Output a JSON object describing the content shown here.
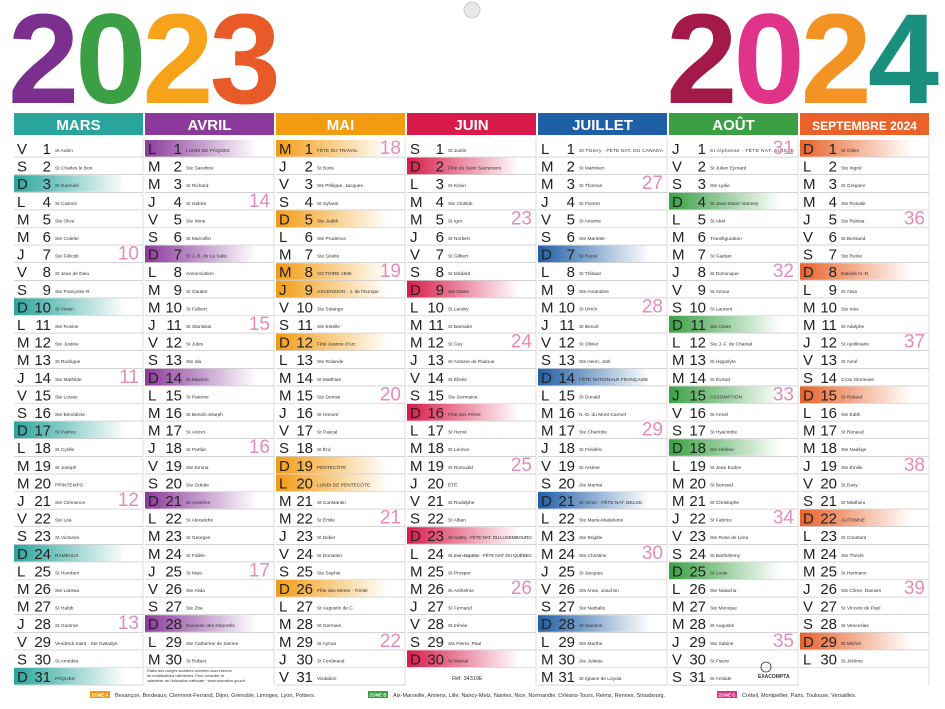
{
  "years": [
    {
      "text": "2023",
      "colors": [
        "#7b2f8e",
        "#3aa043",
        "#f6a21b",
        "#e85a27"
      ]
    },
    {
      "text": "2024",
      "colors": [
        "#a31a4a",
        "#e0338a",
        "#f39324",
        "#1b8f7e"
      ]
    }
  ],
  "months": [
    {
      "name": "MARS",
      "color": "#2aa59c",
      "highlighted": [
        3,
        10,
        17,
        24,
        31
      ],
      "days": [
        [
          "V",
          1,
          "St Aubin"
        ],
        [
          "S",
          2,
          "St Charles le Bon"
        ],
        [
          "D",
          3,
          "St Guénolé"
        ],
        [
          "L",
          4,
          "St Casimir"
        ],
        [
          "M",
          5,
          "Ste Olive"
        ],
        [
          "M",
          6,
          "Ste Colette"
        ],
        [
          "J",
          7,
          "Ste Félicité",
          10
        ],
        [
          "V",
          8,
          "St Jean de Dieu"
        ],
        [
          "S",
          9,
          "Ste Françoise R."
        ],
        [
          "D",
          10,
          "St Vivien"
        ],
        [
          "L",
          11,
          "Ste Rosine"
        ],
        [
          "M",
          12,
          "Ste Justine"
        ],
        [
          "M",
          13,
          "St Rodrigue"
        ],
        [
          "J",
          14,
          "Ste Mathilde",
          11
        ],
        [
          "V",
          15,
          "Ste Louise"
        ],
        [
          "S",
          16,
          "Ste Bénédicte"
        ],
        [
          "D",
          17,
          "St Patrice"
        ],
        [
          "L",
          18,
          "St Cyrille"
        ],
        [
          "M",
          19,
          "St Joseph"
        ],
        [
          "M",
          20,
          "PRINTEMPS"
        ],
        [
          "J",
          21,
          "Ste Clémence",
          12
        ],
        [
          "V",
          22,
          "Ste Léa"
        ],
        [
          "S",
          23,
          "St Victorien"
        ],
        [
          "D",
          24,
          "RAMEAUX"
        ],
        [
          "L",
          25,
          "St Humbert"
        ],
        [
          "M",
          26,
          "Ste Larissa"
        ],
        [
          "M",
          27,
          "St Habib"
        ],
        [
          "J",
          28,
          "St Gontran",
          13
        ],
        [
          "V",
          29,
          "Vendredi Saint · Ste Gwladys"
        ],
        [
          "S",
          30,
          "St Amédée"
        ],
        [
          "D",
          31,
          "PÂQUES"
        ]
      ]
    },
    {
      "name": "AVRIL",
      "color": "#8b3a9b",
      "highlighted": [
        1,
        7,
        14,
        21,
        28
      ],
      "note": "Dates des congés scolaires données sous réserve de modifications ultérieures. Pour consulter le calendrier de l'éducation nationale : www.education.gouv.fr",
      "days": [
        [
          "L",
          1,
          "LUNDI DE PÂQUES"
        ],
        [
          "M",
          2,
          "Ste Sandrine"
        ],
        [
          "M",
          3,
          "St Richard"
        ],
        [
          "J",
          4,
          "St Isidore",
          14
        ],
        [
          "V",
          5,
          "Ste Irène"
        ],
        [
          "S",
          6,
          "St Marcellin"
        ],
        [
          "D",
          7,
          "St J.-B. de La Salle"
        ],
        [
          "L",
          8,
          "Annonciation"
        ],
        [
          "M",
          9,
          "St Gautier"
        ],
        [
          "M",
          10,
          "St Fulbert"
        ],
        [
          "J",
          11,
          "St Stanislas",
          15
        ],
        [
          "V",
          12,
          "St Jules"
        ],
        [
          "S",
          13,
          "Ste Ida"
        ],
        [
          "D",
          14,
          "St Maxime"
        ],
        [
          "L",
          15,
          "St Paterne"
        ],
        [
          "M",
          16,
          "St Benoît-Joseph"
        ],
        [
          "M",
          17,
          "St Anicet"
        ],
        [
          "J",
          18,
          "St Parfait",
          16
        ],
        [
          "V",
          19,
          "Ste Emma"
        ],
        [
          "S",
          20,
          "Ste Odette"
        ],
        [
          "D",
          21,
          "St Anselme"
        ],
        [
          "L",
          22,
          "St Alexandre"
        ],
        [
          "M",
          23,
          "St Georges"
        ],
        [
          "M",
          24,
          "St Fidèle"
        ],
        [
          "J",
          25,
          "St Marc",
          17
        ],
        [
          "V",
          26,
          "Ste Alida"
        ],
        [
          "S",
          27,
          "Ste Zita"
        ],
        [
          "D",
          28,
          "Souvenir des Déportés"
        ],
        [
          "L",
          29,
          "Ste Catherine de Sienne"
        ],
        [
          "M",
          30,
          "St Robert"
        ]
      ]
    },
    {
      "name": "MAI",
      "color": "#f39c12",
      "highlighted": [
        1,
        5,
        8,
        9,
        12,
        19,
        20,
        26
      ],
      "days": [
        [
          "M",
          1,
          "FÊTE DU TRAVAIL",
          18
        ],
        [
          "J",
          2,
          "St Boris"
        ],
        [
          "V",
          3,
          "Sts Philippe, Jacques"
        ],
        [
          "S",
          4,
          "St Sylvain"
        ],
        [
          "D",
          5,
          "Ste Judith"
        ],
        [
          "L",
          6,
          "Ste Prudence"
        ],
        [
          "M",
          7,
          "Ste Gisèle"
        ],
        [
          "M",
          8,
          "VICTOIRE 1945",
          19
        ],
        [
          "J",
          9,
          "ASCENSION · J. de l'Europe"
        ],
        [
          "V",
          10,
          "Ste Solange"
        ],
        [
          "S",
          11,
          "Ste Estelle"
        ],
        [
          "D",
          12,
          "Fête Jeanne d'Arc"
        ],
        [
          "L",
          13,
          "Ste Rolande"
        ],
        [
          "M",
          14,
          "St Matthias"
        ],
        [
          "M",
          15,
          "Ste Denise",
          20
        ],
        [
          "J",
          16,
          "St Honoré"
        ],
        [
          "V",
          17,
          "St Pascal"
        ],
        [
          "S",
          18,
          "St Éric"
        ],
        [
          "D",
          19,
          "PENTECÔTE"
        ],
        [
          "L",
          20,
          "LUNDI DE PENTECÔTE"
        ],
        [
          "M",
          21,
          "St Constantin"
        ],
        [
          "M",
          22,
          "St Émile",
          21
        ],
        [
          "J",
          23,
          "St Didier"
        ],
        [
          "V",
          24,
          "St Donatien"
        ],
        [
          "S",
          25,
          "Ste Sophie"
        ],
        [
          "D",
          26,
          "Fête des Mères · Trinité"
        ],
        [
          "L",
          27,
          "St Augustin de C."
        ],
        [
          "M",
          28,
          "St Germain"
        ],
        [
          "M",
          29,
          "St Aymar",
          22
        ],
        [
          "J",
          30,
          "St Ferdinand"
        ],
        [
          "V",
          31,
          "Visitation"
        ]
      ]
    },
    {
      "name": "JUIN",
      "color": "#d81b4a",
      "highlighted": [
        2,
        9,
        16,
        23,
        30
      ],
      "ref": "Réf. 34310E",
      "days": [
        [
          "S",
          1,
          "St Justin"
        ],
        [
          "D",
          2,
          "Fête du Saint Sacrement"
        ],
        [
          "L",
          3,
          "St Kévin"
        ],
        [
          "M",
          4,
          "Ste Clotilde"
        ],
        [
          "M",
          5,
          "St Igor",
          23
        ],
        [
          "J",
          6,
          "St Norbert"
        ],
        [
          "V",
          7,
          "St Gilbert"
        ],
        [
          "S",
          8,
          "St Médard"
        ],
        [
          "D",
          9,
          "Ste Diane"
        ],
        [
          "L",
          10,
          "St Landry"
        ],
        [
          "M",
          11,
          "St Barnabé"
        ],
        [
          "M",
          12,
          "St Guy",
          24
        ],
        [
          "J",
          13,
          "St Antoine de Padoue"
        ],
        [
          "V",
          14,
          "St Élisée"
        ],
        [
          "S",
          15,
          "Ste Germaine"
        ],
        [
          "D",
          16,
          "Fête des Pères"
        ],
        [
          "L",
          17,
          "St Hervé"
        ],
        [
          "M",
          18,
          "St Léonce"
        ],
        [
          "M",
          19,
          "St Romuald",
          25
        ],
        [
          "J",
          20,
          "ÉTÉ"
        ],
        [
          "V",
          21,
          "St Rodolphe"
        ],
        [
          "S",
          22,
          "St Alban"
        ],
        [
          "D",
          23,
          "St Audrey · FÊTE NAT. DU LUXEMBOURG"
        ],
        [
          "L",
          24,
          "St Jean-Baptiste · FÊTE NAT. DU QUÉBEC"
        ],
        [
          "M",
          25,
          "St Prosper"
        ],
        [
          "M",
          26,
          "St Anthelme",
          26
        ],
        [
          "J",
          27,
          "St Fernand"
        ],
        [
          "V",
          28,
          "St Irénée"
        ],
        [
          "S",
          29,
          "Sts Pierre, Paul"
        ],
        [
          "D",
          30,
          "St Martial"
        ]
      ]
    },
    {
      "name": "JUILLET",
      "color": "#1f5fa6",
      "highlighted": [
        7,
        14,
        21,
        28
      ],
      "days": [
        [
          "L",
          1,
          "St Thierry · FÊTE NAT. DU CANADA"
        ],
        [
          "M",
          2,
          "St Martinien"
        ],
        [
          "M",
          3,
          "St Thomas",
          27
        ],
        [
          "J",
          4,
          "St Florent"
        ],
        [
          "V",
          5,
          "St Antoine"
        ],
        [
          "S",
          6,
          "Ste Mariette"
        ],
        [
          "D",
          7,
          "St Raoul"
        ],
        [
          "L",
          8,
          "St Thibaut"
        ],
        [
          "M",
          9,
          "Ste Amandine"
        ],
        [
          "M",
          10,
          "St Ulrich",
          28
        ],
        [
          "J",
          11,
          "St Benoît"
        ],
        [
          "V",
          12,
          "St Olivier"
        ],
        [
          "S",
          13,
          "Sts Henri, Joël"
        ],
        [
          "D",
          14,
          "FÊTE NATIONALE FRANÇAISE"
        ],
        [
          "L",
          15,
          "St Donald"
        ],
        [
          "M",
          16,
          "N.-D. du Mont-Carmel"
        ],
        [
          "M",
          17,
          "Ste Charlotte",
          29
        ],
        [
          "J",
          18,
          "St Frédéric"
        ],
        [
          "V",
          19,
          "St Arsène"
        ],
        [
          "S",
          20,
          "Ste Marina"
        ],
        [
          "D",
          21,
          "St Victor · FÊTE NAT. BELGE"
        ],
        [
          "L",
          22,
          "Ste Marie-Madeleine"
        ],
        [
          "M",
          23,
          "Ste Brigitte"
        ],
        [
          "M",
          24,
          "Ste Christine",
          30
        ],
        [
          "J",
          25,
          "St Jacques"
        ],
        [
          "V",
          26,
          "Sts Anne, Joachim"
        ],
        [
          "S",
          27,
          "Ste Nathalie"
        ],
        [
          "D",
          28,
          "St Samson"
        ],
        [
          "L",
          29,
          "Ste Marthe"
        ],
        [
          "M",
          30,
          "Ste Juliette"
        ],
        [
          "M",
          31,
          "St Ignace de Loyola"
        ]
      ]
    },
    {
      "name": "AOÛT",
      "color": "#3aa043",
      "highlighted": [
        4,
        11,
        15,
        18,
        25
      ],
      "days": [
        [
          "J",
          1,
          "St Alphonse · FÊTE NAT. SUISSE",
          31
        ],
        [
          "V",
          2,
          "St Julien Eymard"
        ],
        [
          "S",
          3,
          "Ste Lydie"
        ],
        [
          "D",
          4,
          "St Jean-Marie Vianney"
        ],
        [
          "L",
          5,
          "St Abel"
        ],
        [
          "M",
          6,
          "Transfiguration"
        ],
        [
          "M",
          7,
          "St Gaétan"
        ],
        [
          "J",
          8,
          "St Dominique",
          32
        ],
        [
          "V",
          9,
          "St Amour"
        ],
        [
          "S",
          10,
          "St Laurent"
        ],
        [
          "D",
          11,
          "Ste Claire"
        ],
        [
          "L",
          12,
          "Ste J.-F. de Chantal"
        ],
        [
          "M",
          13,
          "St Hippolyte"
        ],
        [
          "M",
          14,
          "St Évrard"
        ],
        [
          "J",
          15,
          "ASSOMPTION",
          33
        ],
        [
          "V",
          16,
          "St Armel"
        ],
        [
          "S",
          17,
          "St Hyacinthe"
        ],
        [
          "D",
          18,
          "Ste Hélène"
        ],
        [
          "L",
          19,
          "St Jean Eudes"
        ],
        [
          "M",
          20,
          "St Bernard"
        ],
        [
          "M",
          21,
          "St Christophe"
        ],
        [
          "J",
          22,
          "St Fabrice",
          34
        ],
        [
          "V",
          23,
          "Ste Rose de Lima"
        ],
        [
          "S",
          24,
          "St Barthélemy"
        ],
        [
          "D",
          25,
          "St Louis"
        ],
        [
          "L",
          26,
          "Ste Natacha"
        ],
        [
          "M",
          27,
          "Ste Monique"
        ],
        [
          "M",
          28,
          "St Augustin"
        ],
        [
          "J",
          29,
          "Ste Sabine",
          35
        ],
        [
          "V",
          30,
          "St Fiacre"
        ],
        [
          "S",
          31,
          "St Aristide"
        ]
      ]
    },
    {
      "name": "SEPTEMBRE 2024",
      "color": "#e8622a",
      "highlighted": [
        1,
        8,
        15,
        22,
        29
      ],
      "days": [
        [
          "D",
          1,
          "St Gilles"
        ],
        [
          "L",
          2,
          "Ste Ingrid"
        ],
        [
          "M",
          3,
          "St Grégoire"
        ],
        [
          "M",
          4,
          "Ste Rosalie"
        ],
        [
          "J",
          5,
          "Ste Raïssa",
          36
        ],
        [
          "V",
          6,
          "St Bertrand"
        ],
        [
          "S",
          7,
          "Ste Reine"
        ],
        [
          "D",
          8,
          "Nativité N.-D."
        ],
        [
          "L",
          9,
          "St Alain"
        ],
        [
          "M",
          10,
          "Ste Inès"
        ],
        [
          "M",
          11,
          "St Adelphe"
        ],
        [
          "J",
          12,
          "St Apollinaire",
          37
        ],
        [
          "V",
          13,
          "St Aimé"
        ],
        [
          "S",
          14,
          "Croix Glorieuse"
        ],
        [
          "D",
          15,
          "St Roland"
        ],
        [
          "L",
          16,
          "Ste Édith"
        ],
        [
          "M",
          17,
          "St Renaud"
        ],
        [
          "M",
          18,
          "Ste Nadège"
        ],
        [
          "J",
          19,
          "Ste Émilie",
          38
        ],
        [
          "V",
          20,
          "St Davy"
        ],
        [
          "S",
          21,
          "St Matthieu"
        ],
        [
          "D",
          22,
          "AUTOMNE"
        ],
        [
          "L",
          23,
          "St Constant"
        ],
        [
          "M",
          24,
          "Ste Thècle"
        ],
        [
          "M",
          25,
          "St Hermann"
        ],
        [
          "J",
          26,
          "Sts Côme, Damien",
          39
        ],
        [
          "V",
          27,
          "St Vincent de Paul"
        ],
        [
          "S",
          28,
          "St Venceslas"
        ],
        [
          "D",
          29,
          "St Michel"
        ],
        [
          "L",
          30,
          "St Jérôme"
        ]
      ]
    }
  ],
  "zones": [
    {
      "label": "ZONE A",
      "color": "#f39c12",
      "cities": "Besançon, Bordeaux, Clermont-Ferrand, Dijon, Grenoble, Limoges, Lyon, Poitiers."
    },
    {
      "label": "ZONE B",
      "color": "#3aa043",
      "cities": "Aix-Marseille, Amiens, Lille, Nancy-Metz, Nantes, Nice, Normandie, Orléans-Tours, Reims, Rennes, Strasbourg."
    },
    {
      "label": "ZONE C",
      "color": "#e0338a",
      "cities": "Créteil, Montpellier, Paris, Toulouse, Versailles."
    }
  ],
  "brand": "EXACOMPTA"
}
